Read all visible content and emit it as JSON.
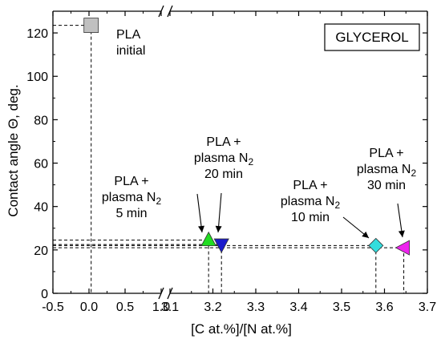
{
  "chart_data": {
    "type": "scatter",
    "title": "",
    "xlabel": "[C at.%]/[N at.%]",
    "ylabel": "Contact angle Θ, deg.",
    "legend_box": "GLYCEROL",
    "x_axis_broken": true,
    "x_segments": [
      {
        "range": [
          -0.5,
          1.0
        ],
        "ticks": [
          "-0.5",
          "0.0",
          "0.5",
          "1.0"
        ]
      },
      {
        "range": [
          3.1,
          3.7
        ],
        "ticks": [
          "3.1",
          "3.2",
          "3.3",
          "3.4",
          "3.5",
          "3.6",
          "3.7"
        ]
      }
    ],
    "ylim": [
      0,
      130
    ],
    "y_ticks": [
      "0",
      "20",
      "40",
      "60",
      "80",
      "100",
      "120"
    ],
    "points": [
      {
        "x": 0.03,
        "y": 123.5,
        "marker": "square",
        "color": "#c0c0c0",
        "label": [
          "PLA",
          "initial"
        ]
      },
      {
        "x": 3.19,
        "y": 24.5,
        "marker": "triangle-up",
        "color": "#22dd22",
        "label": [
          "PLA +",
          "plasma N2",
          "5 min"
        ]
      },
      {
        "x": 3.22,
        "y": 22.5,
        "marker": "triangle-down",
        "color": "#1a1acc",
        "label": [
          "PLA +",
          "plasma N2",
          "20 min"
        ]
      },
      {
        "x": 3.58,
        "y": 22.0,
        "marker": "diamond",
        "color": "#33dddd",
        "label": [
          "PLA +",
          "plasma N2",
          "10 min"
        ]
      },
      {
        "x": 3.645,
        "y": 21.0,
        "marker": "triangle-left",
        "color": "#ee22ee",
        "label": [
          "PLA +",
          "plasma N2",
          "30 min"
        ]
      }
    ],
    "grid": false,
    "dashed_reference_lines": true
  }
}
